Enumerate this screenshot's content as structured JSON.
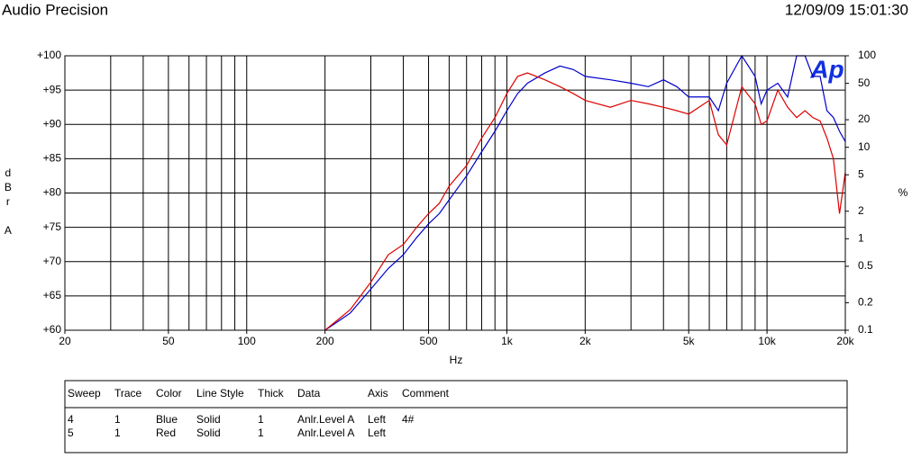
{
  "header": {
    "title": "Audio Precision",
    "timestamp": "12/09/09 15:01:30"
  },
  "chart_data": {
    "type": "line",
    "logo": "Ap",
    "xlabel": "Hz",
    "ylabel": "dBr A",
    "y2label": "%",
    "xscale": "log",
    "y2scale": "log",
    "grid": true,
    "xlim": [
      20,
      20000
    ],
    "xticks": [
      20,
      50,
      100,
      200,
      500,
      {
        "value": 1000,
        "label": "1k"
      },
      {
        "value": 2000,
        "label": "2k"
      },
      {
        "value": 5000,
        "label": "5k"
      },
      {
        "value": 10000,
        "label": "10k"
      },
      {
        "value": 20000,
        "label": "20k"
      }
    ],
    "xgrid": [
      20,
      30,
      40,
      50,
      60,
      70,
      80,
      90,
      100,
      200,
      300,
      400,
      500,
      600,
      700,
      800,
      900,
      1000,
      2000,
      3000,
      4000,
      5000,
      6000,
      7000,
      8000,
      9000,
      10000,
      20000
    ],
    "ylim": [
      60,
      100
    ],
    "yticks": [
      {
        "value": 60,
        "label": "+60"
      },
      {
        "value": 65,
        "label": "+65"
      },
      {
        "value": 70,
        "label": "+70"
      },
      {
        "value": 75,
        "label": "+75"
      },
      {
        "value": 80,
        "label": "+80"
      },
      {
        "value": 85,
        "label": "+85"
      },
      {
        "value": 90,
        "label": "+90"
      },
      {
        "value": 95,
        "label": "+95"
      },
      {
        "value": 100,
        "label": "+100"
      }
    ],
    "y2lim": [
      0.1,
      100
    ],
    "y2ticks": [
      0.1,
      0.2,
      0.5,
      1,
      2,
      5,
      10,
      20,
      50,
      100
    ],
    "x": [
      200,
      250,
      300,
      350,
      400,
      450,
      500,
      550,
      600,
      700,
      800,
      900,
      1000,
      1100,
      1200,
      1400,
      1600,
      1800,
      2000,
      2500,
      3000,
      3500,
      4000,
      4500,
      5000,
      6000,
      6500,
      7000,
      8000,
      9000,
      9500,
      10000,
      11000,
      12000,
      13000,
      14000,
      15000,
      16000,
      17000,
      18000,
      19000,
      20000
    ],
    "series": [
      {
        "color": "#0000cc",
        "values": [
          60,
          62.5,
          66,
          69,
          71,
          73.5,
          75.5,
          77,
          79,
          82.5,
          86,
          89,
          92,
          94.5,
          96,
          97.5,
          98.5,
          98,
          97,
          96.5,
          96,
          95.5,
          96.5,
          95.5,
          94,
          94,
          92,
          96,
          100,
          97,
          93,
          95,
          96,
          94,
          100,
          100,
          97,
          97,
          92,
          91,
          89,
          87.5
        ]
      },
      {
        "color": "#dd0000",
        "values": [
          60,
          63,
          67,
          71,
          72.5,
          75,
          77,
          78.5,
          81,
          84,
          88,
          91,
          94.5,
          97,
          97.5,
          96.5,
          95.5,
          94.5,
          93.5,
          92.5,
          93.5,
          93,
          92.5,
          92,
          91.5,
          93.5,
          88.5,
          87,
          95.5,
          93,
          90,
          90.5,
          95,
          92.5,
          91,
          92,
          91,
          90.5,
          88,
          85,
          77,
          83
        ]
      }
    ]
  },
  "table": {
    "header": [
      "Sweep",
      "Trace",
      "Color",
      "Line Style",
      "Thick",
      "Data",
      "Axis",
      "Comment"
    ],
    "rows": [
      [
        "4",
        "1",
        "Blue",
        "Solid",
        "1",
        "Anlr.Level A",
        "Left",
        "4#"
      ],
      [
        "5",
        "1",
        "Red",
        "Solid",
        "1",
        "Anlr.Level A",
        "Left"
      ]
    ]
  }
}
